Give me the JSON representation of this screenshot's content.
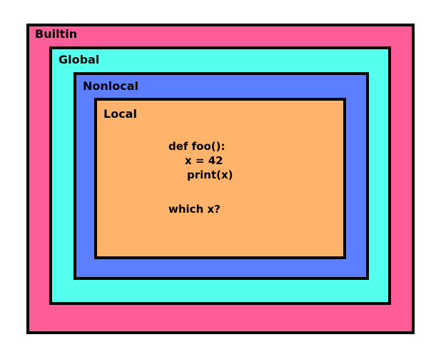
{
  "scopes": {
    "builtin": {
      "label": "Builtin",
      "color": "#ff5c9a"
    },
    "global": {
      "label": "Global",
      "color": "#55ffee"
    },
    "nonlocal": {
      "label": "Nonlocal",
      "color": "#5c7fff"
    },
    "local": {
      "label": "Local",
      "color": "#ffb36b"
    }
  },
  "code": {
    "lines": [
      "def foo():",
      "x = 42",
      "print(x)"
    ],
    "question": "which x?"
  }
}
